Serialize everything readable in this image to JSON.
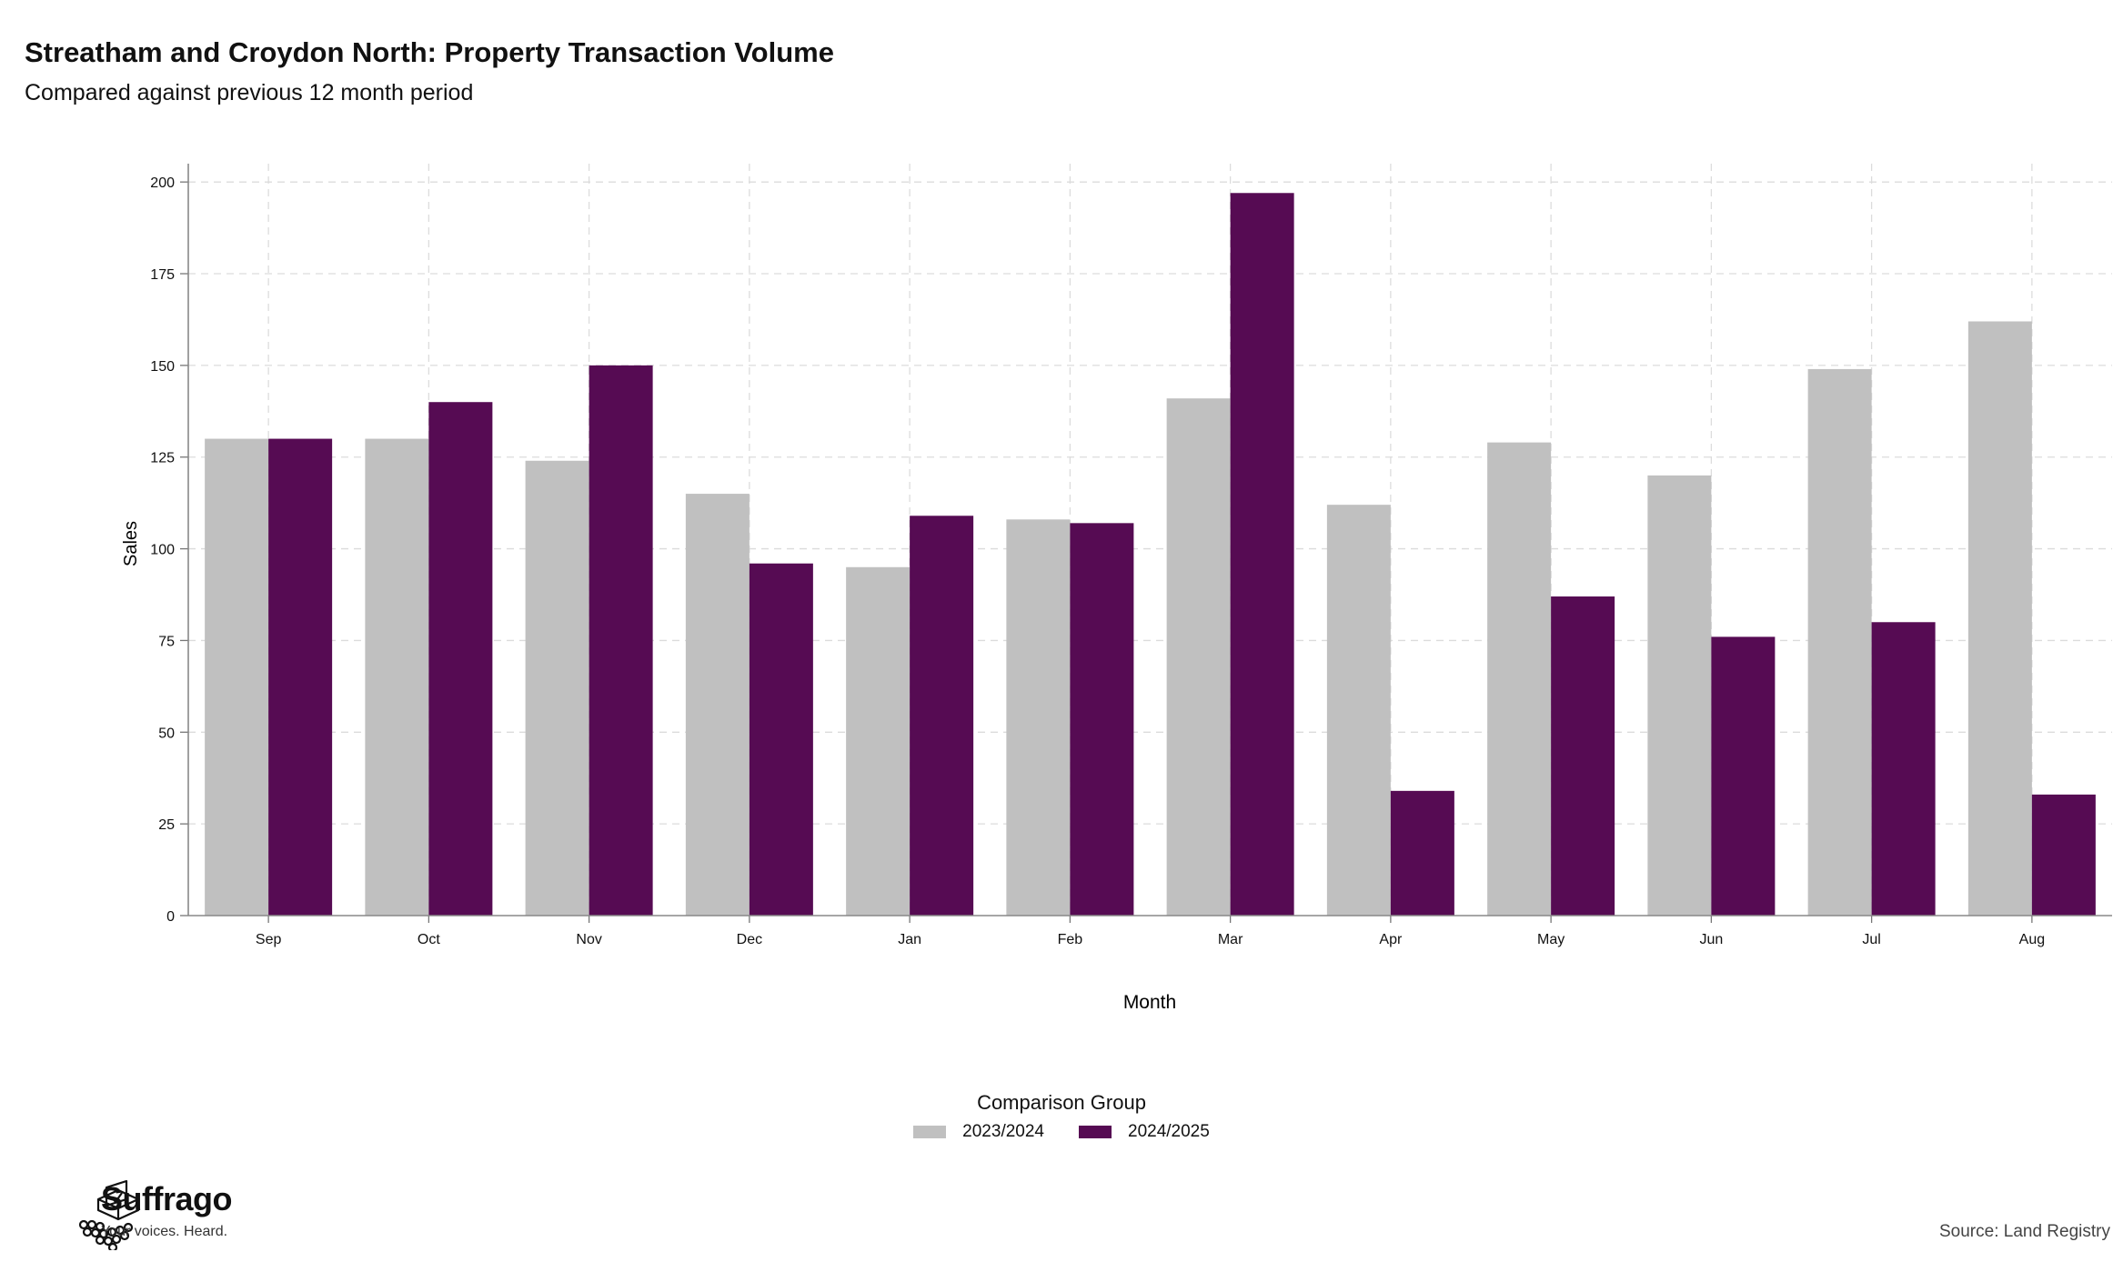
{
  "header": {
    "title": "Streatham and Croydon North: Property Transaction Volume",
    "subtitle": "Compared against previous 12 month period"
  },
  "chart_data": {
    "type": "bar",
    "categories": [
      "Sep",
      "Oct",
      "Nov",
      "Dec",
      "Jan",
      "Feb",
      "Mar",
      "Apr",
      "May",
      "Jun",
      "Jul",
      "Aug"
    ],
    "series": [
      {
        "name": "2023/2024",
        "color": "#c0c0c0",
        "values": [
          130,
          130,
          124,
          115,
          95,
          108,
          141,
          112,
          129,
          120,
          149,
          162
        ]
      },
      {
        "name": "2024/2025",
        "color": "#560b53",
        "values": [
          130,
          140,
          150,
          96,
          109,
          107,
          197,
          34,
          87,
          76,
          80,
          33
        ]
      }
    ],
    "xlabel": "Month",
    "ylabel": "Sales",
    "ylim": [
      0,
      205
    ],
    "yticks": [
      0,
      25,
      50,
      75,
      100,
      125,
      150,
      175,
      200
    ],
    "grid": true,
    "legend": {
      "title": "Comparison Group",
      "position": "bottom"
    }
  },
  "branding": {
    "name": "Suffrago",
    "tagline": "Your voices. Heard.",
    "logo_icon": "ballot-box-icon"
  },
  "footer": {
    "source": "Source: Land Registry"
  }
}
